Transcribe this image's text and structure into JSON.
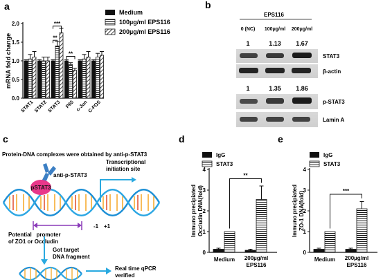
{
  "panels": {
    "a": {
      "label": "a"
    },
    "b": {
      "label": "b"
    },
    "c": {
      "label": "c"
    },
    "d": {
      "label": "d"
    },
    "e": {
      "label": "e"
    }
  },
  "chart_data": [
    {
      "panel": "a",
      "type": "bar",
      "ylabel": "mRNA fold change",
      "ylim": [
        0,
        2.0
      ],
      "yticks": [
        "0.0",
        "0.5",
        "1.0",
        "1.5",
        "2.0"
      ],
      "categories": [
        "STAT1",
        "STAT2",
        "STAT3",
        "P65",
        "c-Jun",
        "C-FOS"
      ],
      "legend": [
        "Medium",
        "100µg/ml EPS116",
        "200µg/ml EPS116"
      ],
      "series": [
        {
          "name": "Medium",
          "values": [
            1.0,
            1.0,
            1.0,
            1.0,
            1.0,
            1.0
          ],
          "errors": [
            0.03,
            0.03,
            0.03,
            0.03,
            0.03,
            0.03
          ]
        },
        {
          "name": "100µg/ml EPS116",
          "values": [
            1.05,
            1.0,
            1.4,
            0.9,
            1.05,
            1.1
          ],
          "errors": [
            0.12,
            0.1,
            0.12,
            0.05,
            0.12,
            0.1
          ]
        },
        {
          "name": "200µg/ml EPS116",
          "values": [
            1.1,
            1.0,
            1.75,
            0.75,
            1.1,
            1.15
          ],
          "errors": [
            0.15,
            0.1,
            0.12,
            0.05,
            0.15,
            0.1
          ]
        }
      ],
      "significance": [
        {
          "from_category": 2,
          "from_series": 0,
          "to_series": 1,
          "label": "**",
          "level": 1.55
        },
        {
          "from_category": 2,
          "from_series": 0,
          "to_series": 2,
          "label": "***",
          "level": 1.93
        },
        {
          "from_category": 3,
          "from_series": 0,
          "to_series": 2,
          "label": "**",
          "level": 1.12
        }
      ]
    },
    {
      "panel": "d",
      "type": "bar",
      "ylabel": "Immuno precipiated Occludin DNA(fold)",
      "ylim": [
        0,
        4
      ],
      "yticks": [
        "0",
        "1",
        "2",
        "3",
        "4"
      ],
      "categories": [
        "Medium",
        "200µg/ml EPS116"
      ],
      "legend": [
        "IgG",
        "STAT3"
      ],
      "series": [
        {
          "name": "IgG",
          "values": [
            0.15,
            0.1
          ],
          "errors": [
            0.05,
            0.05
          ]
        },
        {
          "name": "STAT3",
          "values": [
            1.0,
            2.55
          ],
          "errors": [
            0.0,
            0.65
          ]
        }
      ],
      "significance": [
        {
          "label": "**",
          "level": 3.55
        }
      ]
    },
    {
      "panel": "e",
      "type": "bar",
      "ylabel": "Immuno precipiated ZO-1 DNA(fold)",
      "ylim": [
        0,
        4
      ],
      "yticks": [
        "0",
        "1",
        "2",
        "3",
        "4"
      ],
      "categories": [
        "Medium",
        "200µg/ml EPS116"
      ],
      "legend": [
        "IgG",
        "STAT3"
      ],
      "series": [
        {
          "name": "IgG",
          "values": [
            0.15,
            0.15
          ],
          "errors": [
            0.05,
            0.05
          ]
        },
        {
          "name": "STAT3",
          "values": [
            1.0,
            2.1
          ],
          "errors": [
            0.0,
            0.35
          ]
        }
      ],
      "significance": [
        {
          "label": "***",
          "level": 2.8
        }
      ]
    }
  ],
  "western_blot": {
    "treatment_header": "EPS116",
    "lanes": [
      "0 (NC)",
      "100μg/ml",
      "200μg/ml"
    ],
    "fold_top": [
      "1",
      "1.13",
      "1.67"
    ],
    "fold_bottom": [
      "1",
      "1.35",
      "1.86"
    ],
    "bands": [
      "STAT3",
      "β-actin",
      "p-STAT3",
      "Lamin A"
    ],
    "band_intensity": {
      "STAT3": [
        0.75,
        0.8,
        0.95
      ],
      "β-actin": [
        0.9,
        0.9,
        0.9
      ],
      "p-STAT3": [
        0.7,
        0.8,
        0.95
      ],
      "Lamin A": [
        0.75,
        0.75,
        0.75
      ]
    }
  },
  "schematic": {
    "title": "Protein-DNA complexes were obtained by anti-p-STAT3",
    "antibody_label": "anti-p-STAT3",
    "protein_label": "pSTAT3",
    "tss_label_1": "Transcriptional",
    "tss_label_2": "initiation site",
    "pos_minus": "-1",
    "pos_plus": "+1",
    "promoter_label_1": "Potential   promoter",
    "promoter_label_2": "of ZO1 or Occludin",
    "fragment_label_1": "Got  target",
    "fragment_label_2": "DNA fragment",
    "qpcr_label_1": "Real time qPCR",
    "qpcr_label_2": "verified"
  },
  "colors": {
    "bar_black": "#111111",
    "accent_blue": "#29a9e0",
    "protein_pink": "#e8378a",
    "antibody_blue": "#3b7fc4",
    "promoter_purple": "#8a3ab9",
    "dna_blue": "#1e90d6",
    "dna_orange": "#f5a623"
  }
}
